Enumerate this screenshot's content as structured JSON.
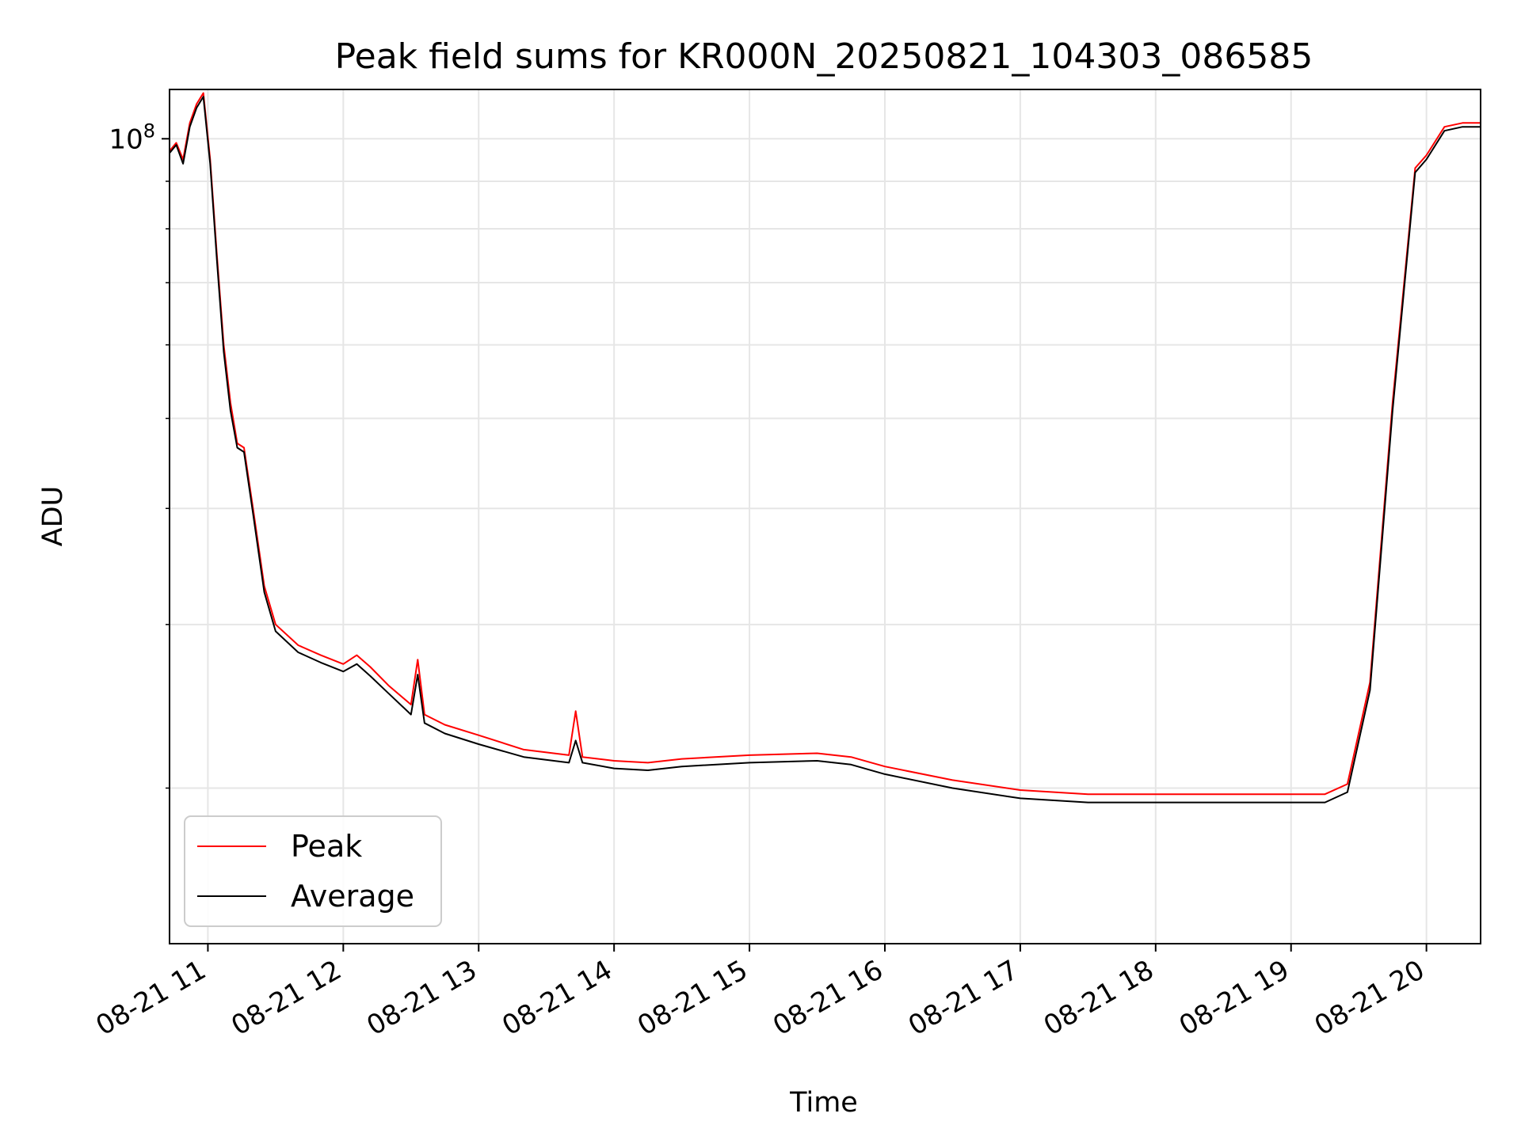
{
  "chart_data": {
    "type": "line",
    "title": "Peak field sums for KR000N_20250821_104303_086585",
    "xlabel": "Time",
    "ylabel": "ADU",
    "y_scale": "log",
    "grid": true,
    "legend_position": "lower-left",
    "xlim": [
      "2025-08-21 10:43",
      "2025-08-21 20:24"
    ],
    "ylim": [
      13600000,
      113000000
    ],
    "x_ticks": [
      "08-21 11",
      "08-21 12",
      "08-21 13",
      "08-21 14",
      "08-21 15",
      "08-21 16",
      "08-21 17",
      "08-21 18",
      "08-21 19",
      "08-21 20"
    ],
    "x_tick_times": [
      "2025-08-21 11:00",
      "2025-08-21 12:00",
      "2025-08-21 13:00",
      "2025-08-21 14:00",
      "2025-08-21 15:00",
      "2025-08-21 16:00",
      "2025-08-21 17:00",
      "2025-08-21 18:00",
      "2025-08-21 19:00",
      "2025-08-21 20:00"
    ],
    "y_tick_label_base": "10",
    "y_tick_label_exp": "8",
    "y_major_tick": 100000000,
    "y_minor_ticks": [
      20000000,
      30000000,
      40000000,
      50000000,
      60000000,
      70000000,
      80000000,
      90000000
    ],
    "series": [
      {
        "name": "Peak",
        "color": "#ff0000",
        "x": [
          "2025-08-21 10:43",
          "2025-08-21 10:46",
          "2025-08-21 10:49",
          "2025-08-21 10:52",
          "2025-08-21 10:55",
          "2025-08-21 10:58",
          "2025-08-21 11:01",
          "2025-08-21 11:04",
          "2025-08-21 11:07",
          "2025-08-21 11:10",
          "2025-08-21 11:13",
          "2025-08-21 11:16",
          "2025-08-21 11:20",
          "2025-08-21 11:25",
          "2025-08-21 11:30",
          "2025-08-21 11:40",
          "2025-08-21 11:50",
          "2025-08-21 12:00",
          "2025-08-21 12:06",
          "2025-08-21 12:12",
          "2025-08-21 12:20",
          "2025-08-21 12:30",
          "2025-08-21 12:33",
          "2025-08-21 12:36",
          "2025-08-21 12:45",
          "2025-08-21 13:00",
          "2025-08-21 13:20",
          "2025-08-21 13:40",
          "2025-08-21 13:43",
          "2025-08-21 13:46",
          "2025-08-21 14:00",
          "2025-08-21 14:15",
          "2025-08-21 14:30",
          "2025-08-21 15:00",
          "2025-08-21 15:30",
          "2025-08-21 15:45",
          "2025-08-21 16:00",
          "2025-08-21 16:30",
          "2025-08-21 17:00",
          "2025-08-21 17:30",
          "2025-08-21 18:00",
          "2025-08-21 18:30",
          "2025-08-21 19:00",
          "2025-08-21 19:15",
          "2025-08-21 19:25",
          "2025-08-21 19:35",
          "2025-08-21 19:45",
          "2025-08-21 19:55",
          "2025-08-21 20:00",
          "2025-08-21 20:08",
          "2025-08-21 20:16",
          "2025-08-21 20:24"
        ],
        "y": [
          97000000,
          99000000,
          95000000,
          104000000,
          109000000,
          112000000,
          95000000,
          75000000,
          60000000,
          52000000,
          47000000,
          46500000,
          40000000,
          33000000,
          30000000,
          28500000,
          27800000,
          27200000,
          27800000,
          27000000,
          25800000,
          24600000,
          27500000,
          24000000,
          23400000,
          22800000,
          22000000,
          21700000,
          24200000,
          21600000,
          21400000,
          21300000,
          21500000,
          21700000,
          21800000,
          21600000,
          21100000,
          20400000,
          19900000,
          19700000,
          19700000,
          19700000,
          19700000,
          19700000,
          20200000,
          26000000,
          52000000,
          93000000,
          96000000,
          103000000,
          104000000,
          104000000
        ]
      },
      {
        "name": "Average",
        "color": "#000000",
        "x": [
          "2025-08-21 10:43",
          "2025-08-21 10:46",
          "2025-08-21 10:49",
          "2025-08-21 10:52",
          "2025-08-21 10:55",
          "2025-08-21 10:58",
          "2025-08-21 11:01",
          "2025-08-21 11:04",
          "2025-08-21 11:07",
          "2025-08-21 11:10",
          "2025-08-21 11:13",
          "2025-08-21 11:16",
          "2025-08-21 11:20",
          "2025-08-21 11:25",
          "2025-08-21 11:30",
          "2025-08-21 11:40",
          "2025-08-21 11:50",
          "2025-08-21 12:00",
          "2025-08-21 12:06",
          "2025-08-21 12:12",
          "2025-08-21 12:20",
          "2025-08-21 12:30",
          "2025-08-21 12:33",
          "2025-08-21 12:36",
          "2025-08-21 12:45",
          "2025-08-21 13:00",
          "2025-08-21 13:20",
          "2025-08-21 13:40",
          "2025-08-21 13:43",
          "2025-08-21 13:46",
          "2025-08-21 14:00",
          "2025-08-21 14:15",
          "2025-08-21 14:30",
          "2025-08-21 15:00",
          "2025-08-21 15:30",
          "2025-08-21 15:45",
          "2025-08-21 16:00",
          "2025-08-21 16:30",
          "2025-08-21 17:00",
          "2025-08-21 17:30",
          "2025-08-21 18:00",
          "2025-08-21 18:30",
          "2025-08-21 19:00",
          "2025-08-21 19:15",
          "2025-08-21 19:25",
          "2025-08-21 19:35",
          "2025-08-21 19:45",
          "2025-08-21 19:55",
          "2025-08-21 20:00",
          "2025-08-21 20:08",
          "2025-08-21 20:16",
          "2025-08-21 20:24"
        ],
        "y": [
          96500000,
          98500000,
          94000000,
          103000000,
          108000000,
          111000000,
          94000000,
          74000000,
          59000000,
          51000000,
          46500000,
          46000000,
          39500000,
          32500000,
          29500000,
          28000000,
          27300000,
          26700000,
          27200000,
          26400000,
          25300000,
          24000000,
          26500000,
          23500000,
          22900000,
          22300000,
          21600000,
          21300000,
          22500000,
          21300000,
          21000000,
          20900000,
          21100000,
          21300000,
          21400000,
          21200000,
          20700000,
          20000000,
          19500000,
          19300000,
          19300000,
          19300000,
          19300000,
          19300000,
          19800000,
          25500000,
          51000000,
          92000000,
          95000000,
          102000000,
          103000000,
          103000000
        ]
      }
    ]
  }
}
